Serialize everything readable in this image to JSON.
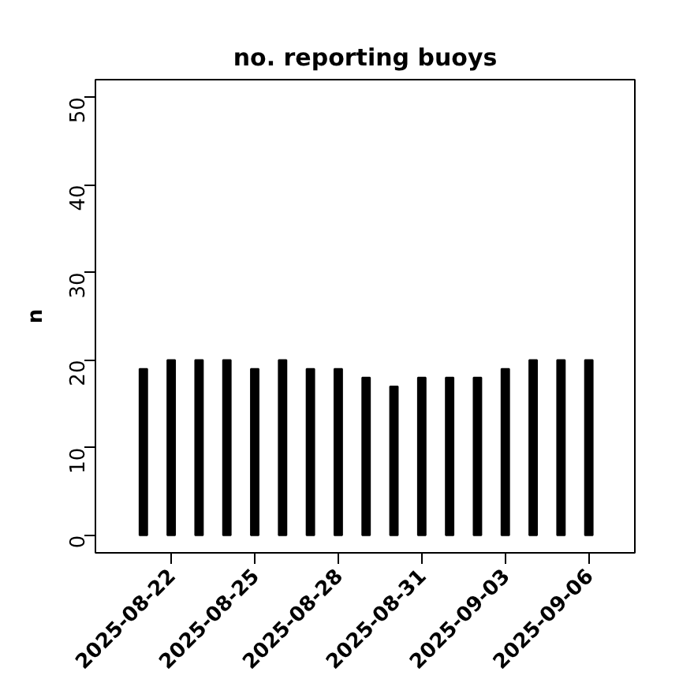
{
  "chart_data": {
    "type": "bar",
    "title": "no. reporting buoys",
    "ylabel": "n",
    "x": [
      "2025-08-21",
      "2025-08-22",
      "2025-08-23",
      "2025-08-24",
      "2025-08-25",
      "2025-08-26",
      "2025-08-27",
      "2025-08-28",
      "2025-08-29",
      "2025-08-30",
      "2025-08-31",
      "2025-09-01",
      "2025-09-02",
      "2025-09-03",
      "2025-09-04",
      "2025-09-05",
      "2025-09-06"
    ],
    "values": [
      19,
      20,
      20,
      20,
      19,
      20,
      19,
      19,
      18,
      17,
      18,
      18,
      18,
      19,
      20,
      20,
      20
    ],
    "color": "#000000",
    "xlim": [
      "2025-08-19T06:40",
      "2025-09-07T15:40"
    ],
    "xticks": [
      "2025-08-22",
      "2025-08-25",
      "2025-08-28",
      "2025-08-31",
      "2025-09-03",
      "2025-09-06"
    ],
    "ylim": [
      -2,
      52
    ],
    "yticks": [
      0,
      10,
      20,
      30,
      40,
      50
    ],
    "grid": false
  }
}
